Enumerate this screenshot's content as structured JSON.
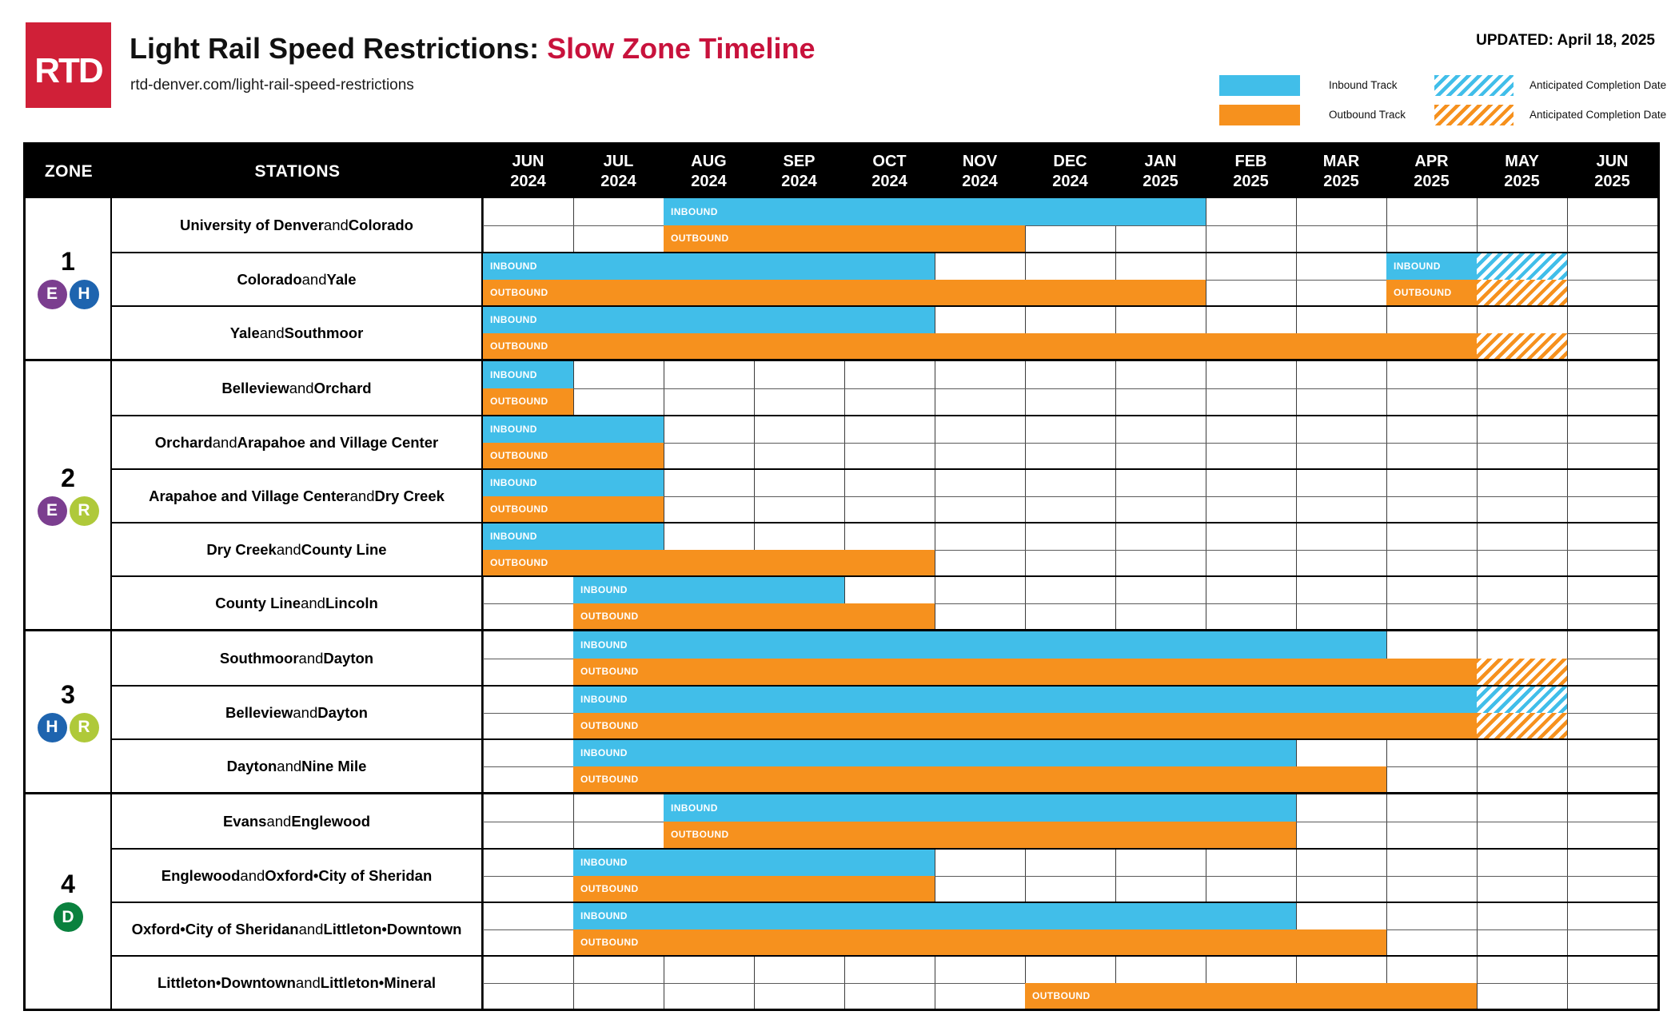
{
  "header": {
    "logo_text": "RTD",
    "title_black": "Light Rail Speed Restrictions: ",
    "title_red": "Slow Zone Timeline",
    "subtitle": "rtd-denver.com/light-rail-speed-restrictions",
    "updated_label": "UPDATED: April 18, 2025",
    "legend": {
      "inbound_label": "Inbound Track",
      "outbound_label": "Outbound Track",
      "anticipated_inbound_label": "Anticipated Completion Date",
      "anticipated_outbound_label": "Anticipated Completion Date"
    }
  },
  "colors": {
    "inbound": "#41BEE9",
    "outbound": "#F6911E",
    "line_E": "#7B3E8F",
    "line_H": "#1E64AF",
    "line_R": "#AFC93A",
    "line_D": "#0A813E",
    "logo_red": "#D02038",
    "title_red": "#C8123C",
    "header_bg": "#000000"
  },
  "table_headers": {
    "zone": "ZONE",
    "stations": "STATIONS"
  },
  "chart_data": {
    "type": "gantt",
    "title": "Light Rail Speed Restrictions: Slow Zone Timeline",
    "x_categories": [
      "JUN 2024",
      "JUL 2024",
      "AUG 2024",
      "SEP 2024",
      "OCT 2024",
      "NOV 2024",
      "DEC 2024",
      "JAN 2025",
      "FEB 2025",
      "MAR 2025",
      "APR 2025",
      "MAY 2025",
      "JUN 2025"
    ],
    "legend_note": "hatched segments = anticipated completion date",
    "zones": [
      {
        "zone": "1",
        "lines": [
          {
            "letter": "E",
            "color_key": "line_E"
          },
          {
            "letter": "H",
            "color_key": "line_H"
          }
        ],
        "stations": [
          {
            "name": [
              {
                "text": "University of Denver",
                "bold": true
              },
              {
                "text": " and ",
                "bold": false
              },
              {
                "text": "Colorado",
                "bold": true
              }
            ],
            "inbound": [
              {
                "start": "AUG 2024",
                "end": "JAN 2025",
                "label": "INBOUND",
                "hatch": false
              }
            ],
            "outbound": [
              {
                "start": "AUG 2024",
                "end": "NOV 2024",
                "label": "OUTBOUND",
                "hatch": false
              }
            ]
          },
          {
            "name": [
              {
                "text": "Colorado",
                "bold": true
              },
              {
                "text": " and ",
                "bold": false
              },
              {
                "text": "Yale",
                "bold": true
              }
            ],
            "inbound": [
              {
                "start": "JUN 2024",
                "end": "OCT 2024",
                "label": "INBOUND",
                "hatch": false
              },
              {
                "start": "APR 2025",
                "end": "APR 2025",
                "label": "INBOUND",
                "hatch": false
              },
              {
                "start": "MAY 2025",
                "end": "MAY 2025",
                "label": "",
                "hatch": true
              }
            ],
            "outbound": [
              {
                "start": "JUN 2024",
                "end": "JAN 2025",
                "label": "OUTBOUND",
                "hatch": false
              },
              {
                "start": "APR 2025",
                "end": "APR 2025",
                "label": "OUTBOUND",
                "hatch": false
              },
              {
                "start": "MAY 2025",
                "end": "MAY 2025",
                "label": "",
                "hatch": true
              }
            ]
          },
          {
            "name": [
              {
                "text": "Yale",
                "bold": true
              },
              {
                "text": " and ",
                "bold": false
              },
              {
                "text": "Southmoor",
                "bold": true
              }
            ],
            "inbound": [
              {
                "start": "JUN 2024",
                "end": "OCT 2024",
                "label": "INBOUND",
                "hatch": false
              }
            ],
            "outbound": [
              {
                "start": "JUN 2024",
                "end": "APR 2025",
                "label": "OUTBOUND",
                "hatch": false
              },
              {
                "start": "MAY 2025",
                "end": "MAY 2025",
                "label": "",
                "hatch": true
              }
            ]
          }
        ]
      },
      {
        "zone": "2",
        "lines": [
          {
            "letter": "E",
            "color_key": "line_E"
          },
          {
            "letter": "R",
            "color_key": "line_R"
          }
        ],
        "stations": [
          {
            "name": [
              {
                "text": "Belleview",
                "bold": true
              },
              {
                "text": " and ",
                "bold": false
              },
              {
                "text": "Orchard",
                "bold": true
              }
            ],
            "inbound": [
              {
                "start": "JUN 2024",
                "end": "JUN 2024",
                "label": "INBOUND",
                "hatch": false
              }
            ],
            "outbound": [
              {
                "start": "JUN 2024",
                "end": "JUN 2024",
                "label": "OUTBOUND",
                "hatch": false
              }
            ]
          },
          {
            "name": [
              {
                "text": "Orchard",
                "bold": true
              },
              {
                "text": " and ",
                "bold": false
              },
              {
                "text": "Arapahoe and Village Center",
                "bold": true
              }
            ],
            "inbound": [
              {
                "start": "JUN 2024",
                "end": "JUL 2024",
                "label": "INBOUND",
                "hatch": false
              }
            ],
            "outbound": [
              {
                "start": "JUN 2024",
                "end": "JUL 2024",
                "label": "OUTBOUND",
                "hatch": false
              }
            ]
          },
          {
            "name": [
              {
                "text": "Arapahoe and Village Center",
                "bold": true
              },
              {
                "text": " and ",
                "bold": false
              },
              {
                "text": "Dry Creek",
                "bold": true
              }
            ],
            "inbound": [
              {
                "start": "JUN 2024",
                "end": "JUL 2024",
                "label": "INBOUND",
                "hatch": false
              }
            ],
            "outbound": [
              {
                "start": "JUN 2024",
                "end": "JUL 2024",
                "label": "OUTBOUND",
                "hatch": false
              }
            ]
          },
          {
            "name": [
              {
                "text": "Dry Creek",
                "bold": true
              },
              {
                "text": " and ",
                "bold": false
              },
              {
                "text": "County Line",
                "bold": true
              }
            ],
            "inbound": [
              {
                "start": "JUN 2024",
                "end": "JUL 2024",
                "label": "INBOUND",
                "hatch": false
              }
            ],
            "outbound": [
              {
                "start": "JUN 2024",
                "end": "OCT 2024",
                "label": "OUTBOUND",
                "hatch": false
              }
            ]
          },
          {
            "name": [
              {
                "text": "County Line",
                "bold": true
              },
              {
                "text": " and ",
                "bold": false
              },
              {
                "text": "Lincoln",
                "bold": true
              }
            ],
            "inbound": [
              {
                "start": "JUL 2024",
                "end": "SEP 2024",
                "label": "INBOUND",
                "hatch": false
              }
            ],
            "outbound": [
              {
                "start": "JUL 2024",
                "end": "OCT 2024",
                "label": "OUTBOUND",
                "hatch": false
              }
            ]
          }
        ]
      },
      {
        "zone": "3",
        "lines": [
          {
            "letter": "H",
            "color_key": "line_H"
          },
          {
            "letter": "R",
            "color_key": "line_R"
          }
        ],
        "stations": [
          {
            "name": [
              {
                "text": "Southmoor",
                "bold": true
              },
              {
                "text": " and ",
                "bold": false
              },
              {
                "text": "Dayton",
                "bold": true
              }
            ],
            "inbound": [
              {
                "start": "JUL 2024",
                "end": "MAR 2025",
                "label": "INBOUND",
                "hatch": false
              }
            ],
            "outbound": [
              {
                "start": "JUL 2024",
                "end": "APR 2025",
                "label": "OUTBOUND",
                "hatch": false
              },
              {
                "start": "MAY 2025",
                "end": "MAY 2025",
                "label": "",
                "hatch": true
              }
            ]
          },
          {
            "name": [
              {
                "text": "Belleview",
                "bold": true
              },
              {
                "text": " and ",
                "bold": false
              },
              {
                "text": "Dayton",
                "bold": true
              }
            ],
            "inbound": [
              {
                "start": "JUL 2024",
                "end": "APR 2025",
                "label": "INBOUND",
                "hatch": false
              },
              {
                "start": "MAY 2025",
                "end": "MAY 2025",
                "label": "",
                "hatch": true
              }
            ],
            "outbound": [
              {
                "start": "JUL 2024",
                "end": "APR 2025",
                "label": "OUTBOUND",
                "hatch": false
              },
              {
                "start": "MAY 2025",
                "end": "MAY 2025",
                "label": "",
                "hatch": true
              }
            ]
          },
          {
            "name": [
              {
                "text": "Dayton",
                "bold": true
              },
              {
                "text": " and ",
                "bold": false
              },
              {
                "text": "Nine Mile",
                "bold": true
              }
            ],
            "inbound": [
              {
                "start": "JUL 2024",
                "end": "FEB 2025",
                "label": "INBOUND",
                "hatch": false
              }
            ],
            "outbound": [
              {
                "start": "JUL 2024",
                "end": "MAR 2025",
                "label": "OUTBOUND",
                "hatch": false
              }
            ]
          }
        ]
      },
      {
        "zone": "4",
        "lines": [
          {
            "letter": "D",
            "color_key": "line_D"
          }
        ],
        "stations": [
          {
            "name": [
              {
                "text": "Evans",
                "bold": true
              },
              {
                "text": " and ",
                "bold": false
              },
              {
                "text": "Englewood",
                "bold": true
              }
            ],
            "inbound": [
              {
                "start": "AUG 2024",
                "end": "FEB 2025",
                "label": "INBOUND",
                "hatch": false
              }
            ],
            "outbound": [
              {
                "start": "AUG 2024",
                "end": "FEB 2025",
                "label": "OUTBOUND",
                "hatch": false
              }
            ]
          },
          {
            "name": [
              {
                "text": "Englewood",
                "bold": true
              },
              {
                "text": " and ",
                "bold": false
              },
              {
                "text": "Oxford•City of Sheridan",
                "bold": true
              }
            ],
            "inbound": [
              {
                "start": "JUL 2024",
                "end": "OCT 2024",
                "label": "INBOUND",
                "hatch": false
              }
            ],
            "outbound": [
              {
                "start": "JUL 2024",
                "end": "OCT 2024",
                "label": "OUTBOUND",
                "hatch": false
              }
            ]
          },
          {
            "name": [
              {
                "text": "Oxford•City of Sheridan",
                "bold": true
              },
              {
                "text": " and ",
                "bold": false
              },
              {
                "text": "Littleton•Downtown",
                "bold": true
              }
            ],
            "inbound": [
              {
                "start": "JUL 2024",
                "end": "FEB 2025",
                "label": "INBOUND",
                "hatch": false
              }
            ],
            "outbound": [
              {
                "start": "JUL 2024",
                "end": "MAR 2025",
                "label": "OUTBOUND",
                "hatch": false
              }
            ]
          },
          {
            "name": [
              {
                "text": "Littleton•Downtown",
                "bold": true
              },
              {
                "text": " and ",
                "bold": false
              },
              {
                "text": "Littleton•Mineral",
                "bold": true
              }
            ],
            "inbound": [],
            "outbound": [
              {
                "start": "DEC 2024",
                "end": "APR 2025",
                "label": "OUTBOUND",
                "hatch": false
              }
            ]
          }
        ]
      }
    ]
  }
}
